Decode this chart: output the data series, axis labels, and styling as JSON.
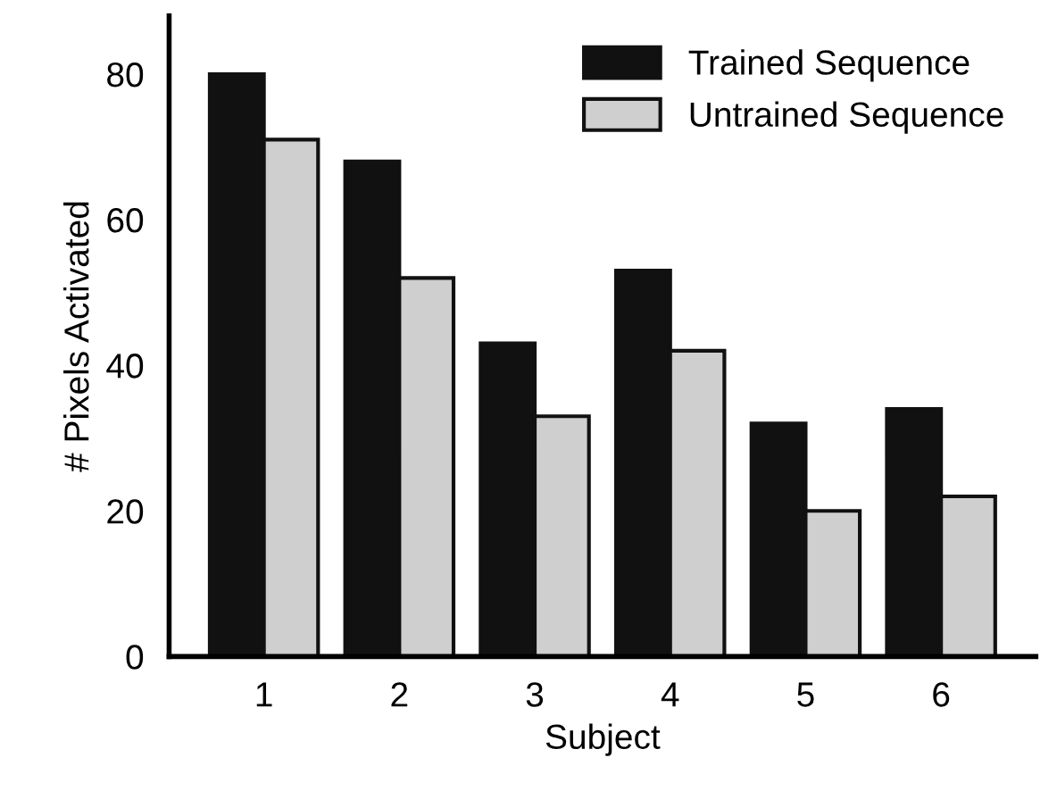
{
  "chart_data": {
    "type": "bar",
    "xlabel": "Subject",
    "ylabel": "# Pixels Activated",
    "categories": [
      "1",
      "2",
      "3",
      "4",
      "5",
      "6"
    ],
    "series": [
      {
        "name": "Trained Sequence",
        "color": "#111111",
        "values": [
          80,
          68,
          43,
          53,
          32,
          34
        ]
      },
      {
        "name": "Untrained Sequence",
        "color": "#cfcfcf",
        "values": [
          71,
          52,
          33,
          42,
          20,
          22
        ]
      }
    ],
    "ylim": [
      0,
      88
    ],
    "yticks": [
      0,
      20,
      40,
      60,
      80
    ],
    "grid": false,
    "legend": "top right"
  }
}
